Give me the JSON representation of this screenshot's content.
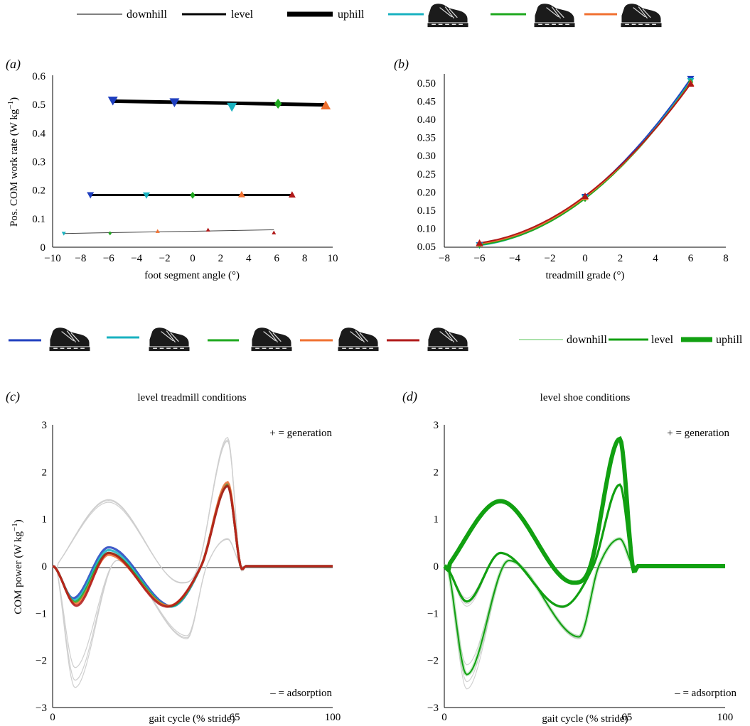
{
  "colors": {
    "s1": "#1f3fbf",
    "s2": "#19b2c0",
    "s3": "#1ea81e",
    "s4": "#f07030",
    "s5": "#b01818",
    "gray": "#cfcfcf",
    "level_green": "#11a011",
    "light_green": "#8fd88f"
  },
  "legend_top": {
    "grades": [
      "downhill",
      "level",
      "uphill"
    ]
  },
  "legend_bottom": {
    "grades": [
      "downhill",
      "level",
      "uphill"
    ]
  },
  "chart_data": [
    {
      "id": "a",
      "panel_label": "(a)",
      "type": "scatter",
      "xlabel": "foot segment angle (°)",
      "ylabel": "Pos. COM work rate (W kg",
      "ylabel_sup": "−1",
      "ylabel_end": ")",
      "xlim": [
        -10,
        10
      ],
      "ylim": [
        0,
        0.6
      ],
      "xticks": [
        "−10",
        "−8",
        "−6",
        "−4",
        "−2",
        "0",
        "2",
        "4",
        "6",
        "8",
        "10"
      ],
      "yticks": [
        "0",
        "0.1",
        "0.2",
        "0.3",
        "0.4",
        "0.5",
        "0.6"
      ],
      "series": [
        {
          "name": "downhill",
          "fit": [
            [
              -9.2,
              0.048
            ],
            [
              5.8,
              0.061
            ]
          ],
          "points": [
            {
              "x": -9.2,
              "y": 0.048,
              "shoe": 2,
              "shape": "down"
            },
            {
              "x": -5.9,
              "y": 0.049,
              "shoe": 3,
              "shape": "diamond"
            },
            {
              "x": -2.5,
              "y": 0.056,
              "shoe": 4,
              "shape": "up"
            },
            {
              "x": 1.1,
              "y": 0.061,
              "shoe": 5,
              "shape": "up"
            },
            {
              "x": 5.8,
              "y": 0.051,
              "shoe": 5,
              "shape": "up"
            }
          ]
        },
        {
          "name": "level",
          "fit": [
            [
              -7.3,
              0.183
            ],
            [
              7.1,
              0.183
            ]
          ],
          "points": [
            {
              "x": -7.3,
              "y": 0.183,
              "shoe": 1,
              "shape": "down"
            },
            {
              "x": -3.3,
              "y": 0.182,
              "shoe": 2,
              "shape": "down"
            },
            {
              "x": 0.0,
              "y": 0.182,
              "shoe": 3,
              "shape": "diamond"
            },
            {
              "x": 3.5,
              "y": 0.185,
              "shoe": 4,
              "shape": "up"
            },
            {
              "x": 7.1,
              "y": 0.184,
              "shoe": 5,
              "shape": "up"
            }
          ]
        },
        {
          "name": "uphill",
          "fit": [
            [
              -5.8,
              0.512
            ],
            [
              9.5,
              0.499
            ]
          ],
          "points": [
            {
              "x": -5.7,
              "y": 0.514,
              "shoe": 1,
              "shape": "down"
            },
            {
              "x": -1.3,
              "y": 0.508,
              "shoe": 1,
              "shape": "down"
            },
            {
              "x": 2.8,
              "y": 0.492,
              "shoe": 2,
              "shape": "down"
            },
            {
              "x": 6.1,
              "y": 0.503,
              "shoe": 3,
              "shape": "diamond"
            },
            {
              "x": 9.5,
              "y": 0.497,
              "shoe": 4,
              "shape": "up"
            }
          ]
        }
      ]
    },
    {
      "id": "b",
      "panel_label": "(b)",
      "type": "line",
      "xlabel": "treadmill grade (°)",
      "xlim": [
        -8,
        8
      ],
      "ylim": [
        0.05,
        0.5
      ],
      "xticks": [
        "−8",
        "−6",
        "−4",
        "−2",
        "0",
        "2",
        "4",
        "6",
        "8"
      ],
      "yticks": [
        "0.05",
        "0.10",
        "0.15",
        "0.20",
        "0.25",
        "0.30",
        "0.35",
        "0.40",
        "0.45",
        "0.50"
      ],
      "x": [
        -6,
        0,
        6
      ],
      "series": [
        {
          "shoe": 1,
          "values": [
            0.054,
            0.187,
            0.512
          ]
        },
        {
          "shoe": 2,
          "values": [
            0.053,
            0.184,
            0.506
          ]
        },
        {
          "shoe": 3,
          "values": [
            0.055,
            0.182,
            0.503
          ]
        },
        {
          "shoe": 4,
          "values": [
            0.058,
            0.186,
            0.5
          ]
        },
        {
          "shoe": 5,
          "values": [
            0.06,
            0.189,
            0.498
          ]
        }
      ]
    },
    {
      "id": "c",
      "panel_label": "(c)",
      "title": "level treadmill conditions",
      "type": "line",
      "xlabel": "gait cycle (% stride)",
      "ylabel": "COM power (W kg",
      "ylabel_sup": "−1",
      "ylabel_end": ")",
      "xlim": [
        0,
        100
      ],
      "ylim": [
        -3,
        3
      ],
      "xticks": [
        "0",
        "65",
        "100"
      ],
      "yticks": [
        "−3",
        "−2",
        "−1",
        "0",
        "1",
        "2",
        "3"
      ],
      "annotation_top": "+ = generation",
      "annotation_bottom": "– = adsorption",
      "background": [
        {
          "grade": "uphill",
          "offsets": [
            -0.06,
            0.03,
            0.08
          ]
        },
        {
          "grade": "downhill",
          "offsets": [
            -0.05,
            0.04,
            0.09
          ]
        }
      ],
      "highlight": [
        {
          "shoe": 1,
          "min1": -0.68,
          "max1": 0.4,
          "min2": -0.85,
          "peak": 1.72
        },
        {
          "shoe": 2,
          "min1": -0.72,
          "max1": 0.34,
          "min2": -0.86,
          "peak": 1.75
        },
        {
          "shoe": 3,
          "min1": -0.76,
          "max1": 0.28,
          "min2": -0.85,
          "peak": 1.72
        },
        {
          "shoe": 4,
          "min1": -0.8,
          "max1": 0.24,
          "min2": -0.84,
          "peak": 1.78
        },
        {
          "shoe": 5,
          "min1": -0.84,
          "max1": 0.28,
          "min2": -0.86,
          "peak": 1.7
        }
      ]
    },
    {
      "id": "d",
      "panel_label": "(d)",
      "title": "level shoe conditions",
      "type": "line",
      "xlabel": "gait cycle (% stride)",
      "xlim": [
        0,
        100
      ],
      "ylim": [
        -3,
        3
      ],
      "xticks": [
        "0",
        "65",
        "100"
      ],
      "yticks": [
        "−3",
        "−2",
        "−1",
        "0",
        "1",
        "2",
        "3"
      ],
      "annotation_top": "+ = generation",
      "annotation_bottom": "– = adsorption",
      "background_offsets": [
        -0.07,
        0.05,
        0.1
      ]
    }
  ]
}
